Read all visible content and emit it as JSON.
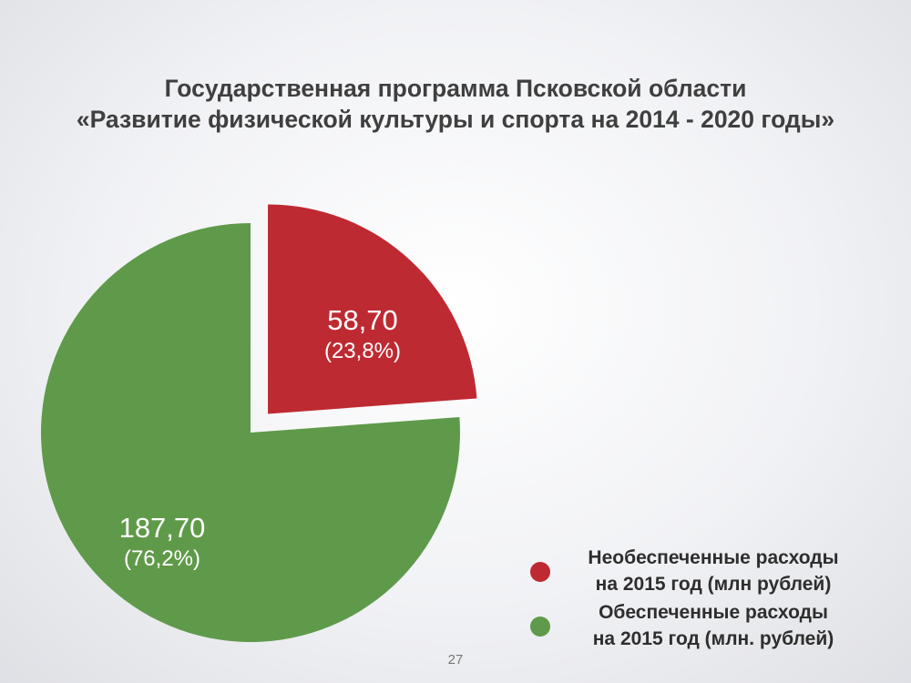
{
  "slide": {
    "title_line1": "Государственная программа Псковской области",
    "title_line2": "«Развитие физической культуры и спорта на 2014 - 2020 годы»",
    "page_number": "27"
  },
  "chart_data": {
    "type": "pie",
    "title": "",
    "slices": [
      {
        "value": 58.7,
        "value_label": "58,70",
        "percent": 23.8,
        "percent_label": "(23,8%)",
        "color": "#be2a32",
        "exploded": true,
        "legend_line1": "Необеспеченные расходы",
        "legend_line2": "на 2015 год  (млн рублей)"
      },
      {
        "value": 187.7,
        "value_label": "187,70",
        "percent": 76.2,
        "percent_label": "(76,2%)",
        "color": "#5f9a4a",
        "exploded": false,
        "legend_line1": "Обеспеченные расходы",
        "legend_line2": "на 2015 год (млн. рублей)"
      }
    ],
    "legend_position": "bottom-right"
  }
}
